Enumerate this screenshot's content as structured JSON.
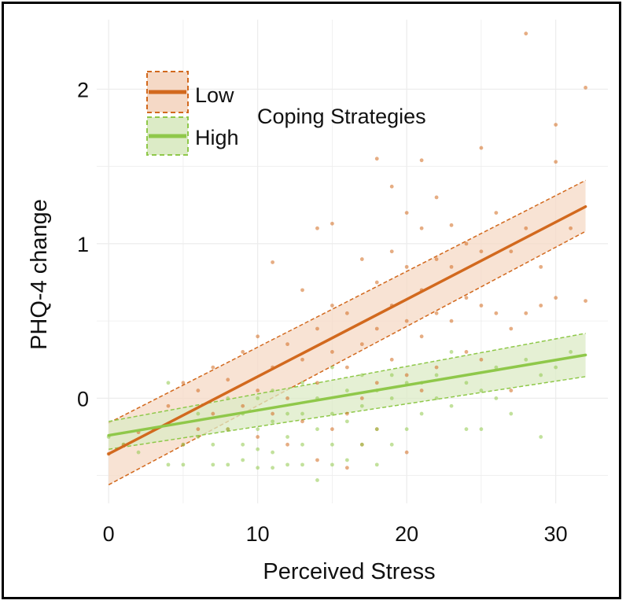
{
  "chart_data": {
    "type": "scatter",
    "title": "",
    "xlabel": "Perceived Stress",
    "ylabel": "PHQ-4 change",
    "xlim": [
      -0.8,
      33.5
    ],
    "ylim": [
      -0.68,
      2.45
    ],
    "xticks": [
      0,
      10,
      20,
      30
    ],
    "yticks": [
      0,
      1,
      2
    ],
    "grid": true,
    "legend": {
      "title": "Coping Strategies",
      "placement": "top-left",
      "entries": [
        {
          "label": "Low",
          "color": "#d2691e"
        },
        {
          "label": "High",
          "color": "#8fc84a"
        }
      ]
    },
    "series": [
      {
        "name": "Low",
        "color": "#d2691e",
        "fill": "#f5d9c6",
        "trend": {
          "x": [
            0,
            32
          ],
          "y": [
            -0.36,
            1.24
          ]
        },
        "ci_lower": {
          "x": [
            0,
            32
          ],
          "y": [
            -0.56,
            1.08
          ]
        },
        "ci_upper": {
          "x": [
            0,
            32
          ],
          "y": [
            -0.16,
            1.41
          ]
        },
        "points": [
          [
            0,
            -0.36
          ],
          [
            1,
            -0.3
          ],
          [
            2,
            -0.22
          ],
          [
            3,
            -0.2
          ],
          [
            4,
            -0.05
          ],
          [
            5,
            0.1
          ],
          [
            5,
            -0.3
          ],
          [
            6,
            0.05
          ],
          [
            6,
            -0.2
          ],
          [
            7,
            0.2
          ],
          [
            7,
            -0.1
          ],
          [
            8,
            0.12
          ],
          [
            8,
            -0.2
          ],
          [
            9,
            0.3
          ],
          [
            9,
            -0.05
          ],
          [
            10,
            0.4
          ],
          [
            10,
            0.05
          ],
          [
            10,
            -0.25
          ],
          [
            11,
            0.2
          ],
          [
            11,
            -0.1
          ],
          [
            11,
            0.88
          ],
          [
            12,
            0.35
          ],
          [
            12,
            0.0
          ],
          [
            12,
            -0.3
          ],
          [
            13,
            0.7
          ],
          [
            13,
            0.25
          ],
          [
            13,
            -0.15
          ],
          [
            14,
            1.1
          ],
          [
            14,
            0.45
          ],
          [
            14,
            0.1
          ],
          [
            14,
            -0.4
          ],
          [
            15,
            1.13
          ],
          [
            15,
            0.6
          ],
          [
            15,
            0.3
          ],
          [
            15,
            -0.2
          ],
          [
            16,
            0.55
          ],
          [
            16,
            0.2
          ],
          [
            16,
            -0.1
          ],
          [
            16,
            -0.45
          ],
          [
            17,
            0.9
          ],
          [
            17,
            0.35
          ],
          [
            17,
            0.0
          ],
          [
            17,
            -0.3
          ],
          [
            18,
            1.55
          ],
          [
            18,
            0.75
          ],
          [
            18,
            0.45
          ],
          [
            18,
            0.1
          ],
          [
            18,
            -0.2
          ],
          [
            19,
            1.37
          ],
          [
            19,
            0.95
          ],
          [
            19,
            0.6
          ],
          [
            19,
            0.25
          ],
          [
            20,
            1.2
          ],
          [
            20,
            0.85
          ],
          [
            20,
            0.5
          ],
          [
            20,
            0.15
          ],
          [
            20,
            -0.35
          ],
          [
            21,
            1.54
          ],
          [
            21,
            1.1
          ],
          [
            21,
            0.7
          ],
          [
            21,
            0.4
          ],
          [
            21,
            0.05
          ],
          [
            22,
            1.3
          ],
          [
            22,
            0.9
          ],
          [
            22,
            0.55
          ],
          [
            22,
            0.2
          ],
          [
            23,
            1.12
          ],
          [
            23,
            0.85
          ],
          [
            23,
            0.5
          ],
          [
            24,
            1.0
          ],
          [
            24,
            0.65
          ],
          [
            24,
            0.3
          ],
          [
            25,
            1.62
          ],
          [
            25,
            0.95
          ],
          [
            25,
            0.6
          ],
          [
            25,
            0.25
          ],
          [
            26,
            1.2
          ],
          [
            26,
            0.55
          ],
          [
            27,
            0.95
          ],
          [
            27,
            0.45
          ],
          [
            27,
            0.05
          ],
          [
            28,
            2.36
          ],
          [
            28,
            1.1
          ],
          [
            28,
            0.55
          ],
          [
            29,
            0.85
          ],
          [
            29,
            0.6
          ],
          [
            30,
            1.77
          ],
          [
            30,
            1.53
          ],
          [
            30,
            0.65
          ],
          [
            31,
            1.1
          ],
          [
            32,
            2.01
          ],
          [
            32,
            0.63
          ]
        ]
      },
      {
        "name": "High",
        "color": "#8fc84a",
        "fill": "#dcebc6",
        "trend": {
          "x": [
            0,
            32
          ],
          "y": [
            -0.24,
            0.28
          ]
        },
        "ci_lower": {
          "x": [
            0,
            32
          ],
          "y": [
            -0.33,
            0.14
          ]
        },
        "ci_upper": {
          "x": [
            0,
            32
          ],
          "y": [
            -0.15,
            0.42
          ]
        },
        "points": [
          [
            0,
            -0.25
          ],
          [
            1,
            -0.3
          ],
          [
            2,
            -0.35
          ],
          [
            3,
            -0.2
          ],
          [
            4,
            -0.43
          ],
          [
            4,
            0.1
          ],
          [
            5,
            -0.3
          ],
          [
            5,
            -0.43
          ],
          [
            6,
            -0.25
          ],
          [
            6,
            -0.1
          ],
          [
            7,
            -0.43
          ],
          [
            7,
            -0.3
          ],
          [
            8,
            -0.43
          ],
          [
            8,
            -0.2
          ],
          [
            8,
            0.0
          ],
          [
            9,
            -0.4
          ],
          [
            9,
            -0.3
          ],
          [
            9,
            -0.1
          ],
          [
            10,
            -0.45
          ],
          [
            10,
            -0.33
          ],
          [
            10,
            -0.2
          ],
          [
            10,
            0.0
          ],
          [
            11,
            -0.45
          ],
          [
            11,
            -0.35
          ],
          [
            11,
            -0.15
          ],
          [
            11,
            0.05
          ],
          [
            12,
            -0.43
          ],
          [
            12,
            -0.25
          ],
          [
            12,
            -0.1
          ],
          [
            13,
            -0.43
          ],
          [
            13,
            -0.3
          ],
          [
            13,
            -0.1
          ],
          [
            13,
            0.1
          ],
          [
            14,
            -0.53
          ],
          [
            14,
            -0.2
          ],
          [
            14,
            0.0
          ],
          [
            15,
            -0.43
          ],
          [
            15,
            -0.3
          ],
          [
            15,
            -0.1
          ],
          [
            15,
            0.2
          ],
          [
            16,
            -0.4
          ],
          [
            16,
            -0.15
          ],
          [
            16,
            0.05
          ],
          [
            17,
            -0.3
          ],
          [
            17,
            -0.05
          ],
          [
            17,
            0.15
          ],
          [
            18,
            -0.43
          ],
          [
            18,
            -0.2
          ],
          [
            18,
            0.05
          ],
          [
            19,
            -0.3
          ],
          [
            19,
            0.0
          ],
          [
            19,
            0.15
          ],
          [
            20,
            -0.2
          ],
          [
            20,
            0.1
          ],
          [
            21,
            -0.1
          ],
          [
            21,
            0.1
          ],
          [
            22,
            0.0
          ],
          [
            22,
            0.15
          ],
          [
            23,
            -0.05
          ],
          [
            23,
            0.3
          ],
          [
            24,
            -0.2
          ],
          [
            24,
            0.1
          ],
          [
            25,
            0.05
          ],
          [
            25,
            -0.2
          ],
          [
            26,
            0.0
          ],
          [
            26,
            0.2
          ],
          [
            27,
            -0.1
          ],
          [
            28,
            0.25
          ],
          [
            29,
            -0.25
          ],
          [
            29,
            0.15
          ],
          [
            30,
            0.2
          ],
          [
            31,
            0.3
          ]
        ]
      }
    ]
  }
}
